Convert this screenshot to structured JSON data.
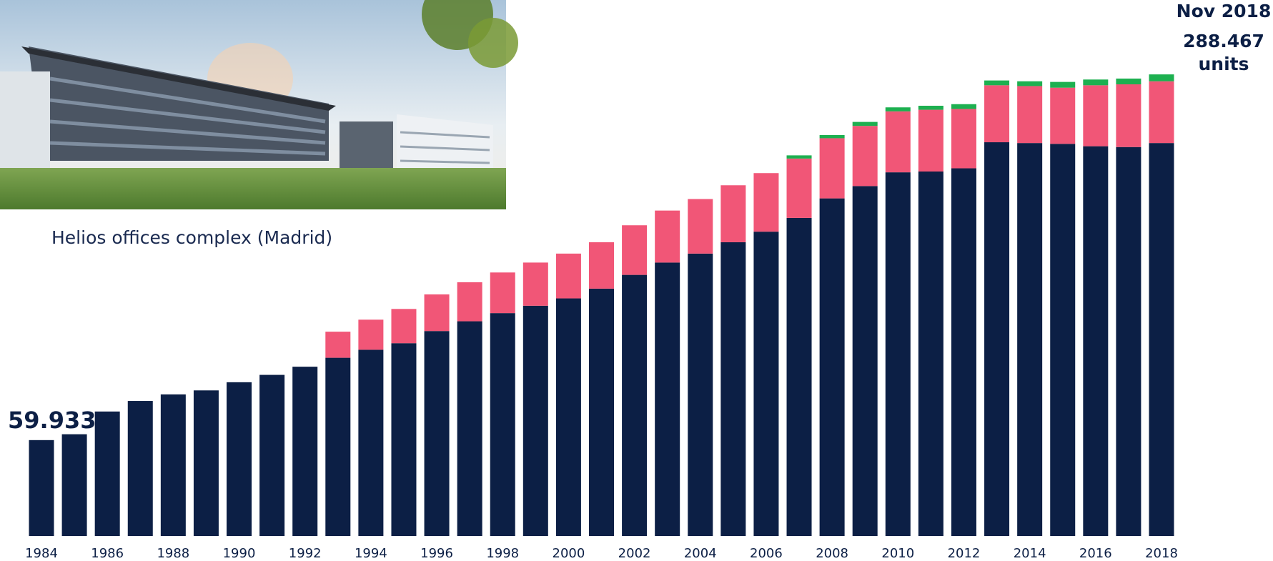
{
  "caption": "Helios offices complex (Madrid)",
  "chart_data": {
    "type": "stacked_bar",
    "categories": [
      "1984",
      null,
      "1986",
      null,
      "1988",
      null,
      "1990",
      null,
      "1992",
      null,
      "1994",
      null,
      "1996",
      null,
      "1998",
      null,
      "2000",
      null,
      "2002",
      null,
      "2004",
      null,
      "2006",
      null,
      "2008",
      null,
      "2010",
      null,
      "2012",
      null,
      "2014",
      null,
      "2016",
      null,
      "2018"
    ],
    "series": [
      {
        "color": "#0c1f45",
        "values": [
          59933,
          63600,
          77800,
          84400,
          88500,
          91000,
          96100,
          100700,
          105800,
          111400,
          116400,
          120500,
          128100,
          134200,
          139300,
          143900,
          148500,
          154600,
          163200,
          170900,
          176500,
          183600,
          190200,
          198800,
          211000,
          218700,
          227300,
          227800,
          229800,
          246100,
          245600,
          245100,
          243600,
          243100,
          245600
        ]
      },
      {
        "color": "#f15677",
        "values": [
          null,
          null,
          null,
          null,
          null,
          null,
          null,
          null,
          null,
          16300,
          18800,
          21400,
          22900,
          24400,
          25400,
          27000,
          28000,
          29000,
          31000,
          32500,
          34100,
          35600,
          36600,
          37100,
          37600,
          37600,
          38100,
          38600,
          37100,
          35600,
          35600,
          35100,
          38100,
          39200,
          38600
        ]
      },
      {
        "color": "#1db050",
        "values": [
          null,
          null,
          null,
          null,
          null,
          null,
          null,
          null,
          null,
          null,
          null,
          null,
          null,
          null,
          null,
          null,
          null,
          null,
          null,
          null,
          null,
          null,
          null,
          2000,
          2000,
          2500,
          2500,
          2500,
          3000,
          3000,
          3000,
          3600,
          3600,
          3600,
          4300
        ]
      }
    ],
    "ylim": [
      0,
      335000
    ],
    "annotations": [
      "59.933",
      "Nov 2018",
      "288.467",
      "units"
    ]
  }
}
